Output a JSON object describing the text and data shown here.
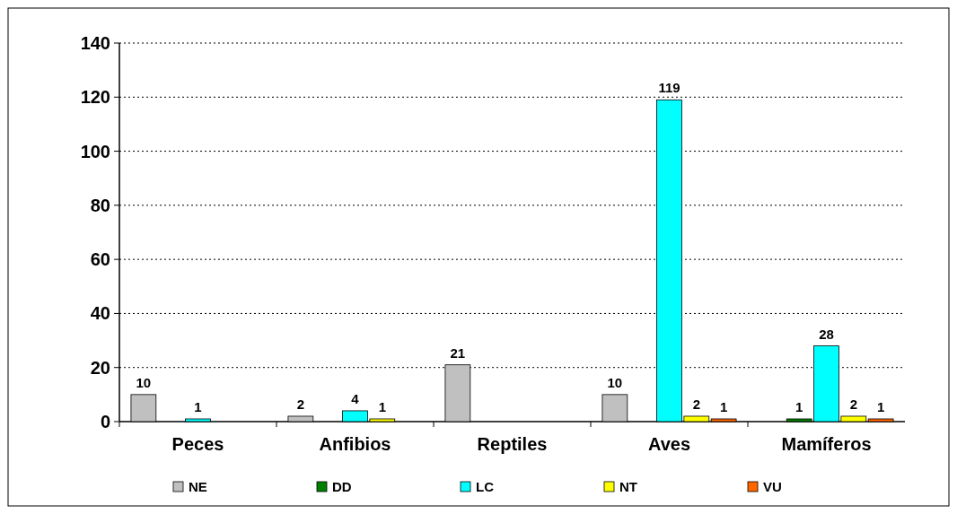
{
  "chart_data": {
    "type": "bar",
    "categories": [
      "Peces",
      "Anfibios",
      "Reptiles",
      "Aves",
      "Mamíferos"
    ],
    "series": [
      {
        "name": "NE",
        "color": "#c0c0c0",
        "values": [
          10,
          2,
          21,
          10,
          null
        ]
      },
      {
        "name": "DD",
        "color": "#008000",
        "values": [
          null,
          null,
          null,
          null,
          1
        ]
      },
      {
        "name": "LC",
        "color": "#00ffff",
        "values": [
          1,
          4,
          null,
          119,
          28
        ]
      },
      {
        "name": "NT",
        "color": "#ffff00",
        "values": [
          null,
          1,
          null,
          2,
          2
        ]
      },
      {
        "name": "VU",
        "color": "#ff6600",
        "values": [
          null,
          null,
          null,
          1,
          1
        ]
      }
    ],
    "ylim": [
      0,
      140
    ],
    "yticks": [
      0,
      20,
      40,
      60,
      80,
      100,
      120,
      140
    ],
    "grid": "y",
    "legend": "bottom",
    "data_labels": true
  }
}
